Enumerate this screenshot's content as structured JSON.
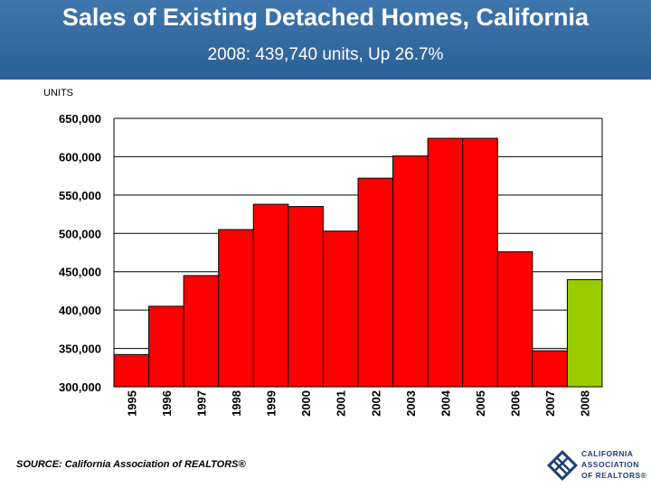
{
  "header": {
    "title": "Sales of Existing Detached Homes, California",
    "subtitle": "2008: 439,740 units, Up 26.7%"
  },
  "footer": {
    "source": "SOURCE: California Association of REALTORS®",
    "logo_lines": [
      "CALIFORNIA",
      "ASSOCIATION",
      "OF REALTORS®"
    ]
  },
  "colors": {
    "banner": "#2f66a0",
    "bar": "#ff0000",
    "highlight": "#99cc00"
  },
  "chart_data": {
    "type": "bar",
    "title": "Sales of Existing Detached Homes, California",
    "subtitle": "2008: 439,740 units, Up 26.7%",
    "ylabel": "UNITS",
    "xlabel": "",
    "categories": [
      "1995",
      "1996",
      "1997",
      "1998",
      "1999",
      "2000",
      "2001",
      "2002",
      "2003",
      "2004",
      "2005",
      "2006",
      "2007",
      "2008"
    ],
    "values": [
      342000,
      405000,
      445000,
      505000,
      538000,
      535000,
      503000,
      572000,
      601000,
      624000,
      624000,
      476000,
      347000,
      439740
    ],
    "highlight_category": "2008",
    "ylim": [
      300000,
      650000
    ],
    "yticks": [
      300000,
      350000,
      400000,
      450000,
      500000,
      550000,
      600000,
      650000
    ],
    "ytick_labels": [
      "300,000",
      "350,000",
      "400,000",
      "450,000",
      "500,000",
      "550,000",
      "600,000",
      "650,000"
    ],
    "grid": true,
    "legend": "none"
  }
}
